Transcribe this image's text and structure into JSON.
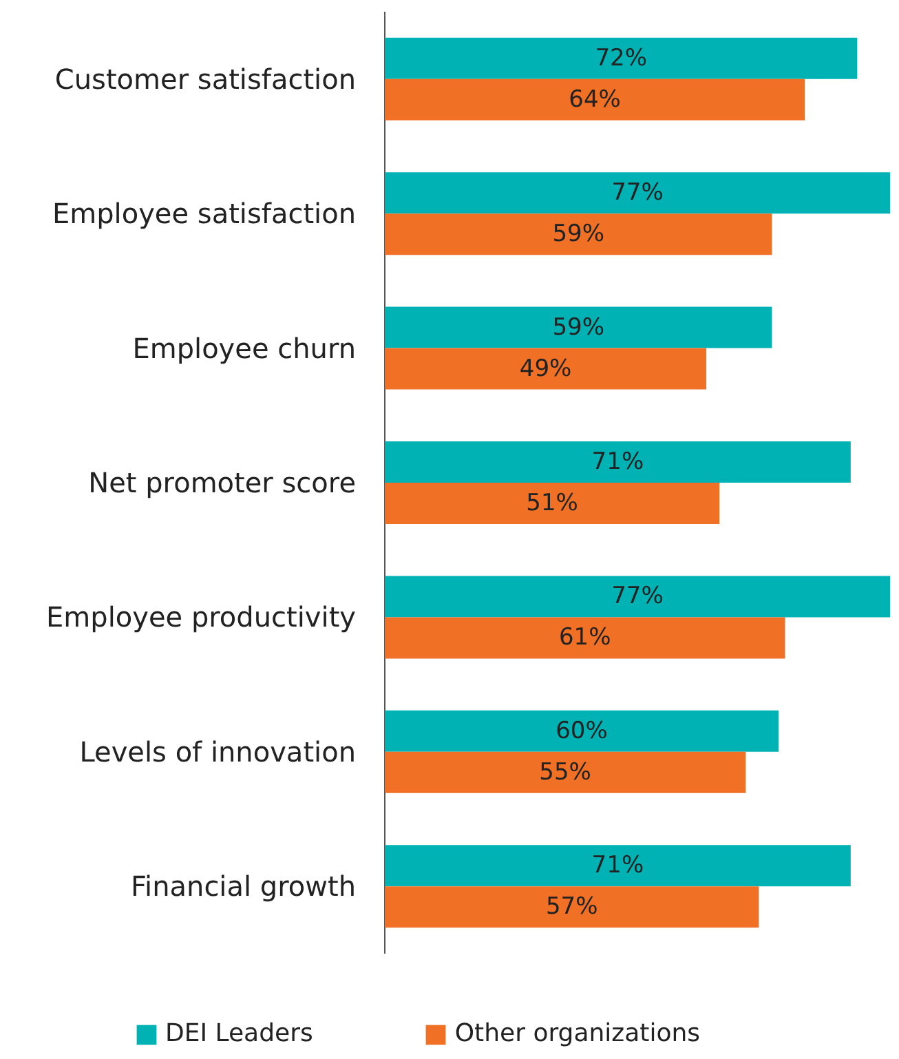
{
  "chart_data": {
    "type": "bar",
    "orientation": "horizontal",
    "categories": [
      "Customer satisfaction",
      "Employee satisfaction",
      "Employee churn",
      "Net promoter score",
      "Employee productivity",
      "Levels of innovation",
      "Financial growth"
    ],
    "series": [
      {
        "name": "DEI Leaders",
        "color": "#00b2b3",
        "values": [
          72,
          77,
          59,
          71,
          77,
          60,
          71
        ],
        "value_labels": [
          "72%",
          "77%",
          "59%",
          "71%",
          "77%",
          "60%",
          "71%"
        ]
      },
      {
        "name": "Other organizations",
        "color": "#f07126",
        "values": [
          64,
          59,
          49,
          51,
          61,
          55,
          57
        ],
        "value_labels": [
          "64%",
          "59%",
          "49%",
          "51%",
          "61%",
          "55%",
          "57%"
        ]
      }
    ],
    "legend": "bottom",
    "grid": false
  }
}
